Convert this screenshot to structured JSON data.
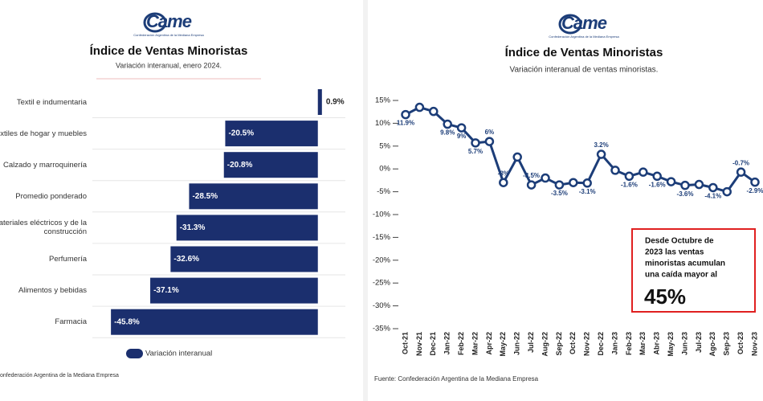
{
  "chart_data": [
    {
      "type": "bar",
      "orientation": "horizontal",
      "logo": "Came",
      "logo_caption": "Confederación Argentina de la Mediana Empresa",
      "title": "Índice de Ventas Minoristas",
      "subtitle": "Variación interanual, enero 2024.",
      "categories": [
        "Textil e indumentaria",
        "decoración, textiles de hogar y muebles",
        "Calzado y marroquinería",
        "Promedio ponderado",
        "e, materiales eléctricos y de la construcción",
        "Perfumería",
        "Alimentos y bebidas",
        "Farmacia"
      ],
      "series": [
        {
          "name": "Variación interanual",
          "color": "#1b2f6e",
          "values": [
            0.9,
            -20.5,
            -20.8,
            -28.5,
            -31.3,
            -32.6,
            -37.1,
            -45.8
          ],
          "value_labels": [
            "0.9%",
            "-20.5%",
            "-20.8%",
            "-28.5%",
            "-31.3%",
            "-32.6%",
            "-37.1%",
            "-45.8%"
          ]
        }
      ],
      "xlim": [
        -46,
        2
      ],
      "source": "onfederación Argentina de la Mediana Empresa"
    },
    {
      "type": "line",
      "logo": "Came",
      "logo_caption": "Confederación Argentina de la Mediana Empresa",
      "title": "Índice de Ventas Minoristas",
      "subtitle": "Variación interanual de ventas minoristas.",
      "categories": [
        "Oct-21",
        "Nov-21",
        "Dec-21",
        "Jan-22",
        "Feb-22",
        "Mar-22",
        "Apr-22",
        "May-22",
        "Jun-22",
        "Jul-22",
        "Aug-22",
        "Sep-22",
        "Oct-22",
        "Nov-22",
        "Dec-22",
        "Jan-23",
        "Feb-23",
        "Mar-23",
        "Abr-23",
        "May-23",
        "Jun-23",
        "Jul-23",
        "Ago-23",
        "Sep-23",
        "Oct-23",
        "Nov-23"
      ],
      "values": [
        11.9,
        13.5,
        12.6,
        9.8,
        9,
        5.7,
        6,
        -3,
        2.6,
        -3.5,
        -2,
        -3.5,
        -3,
        -3.1,
        3.2,
        -0.3,
        -1.6,
        -0.7,
        -1.6,
        -2.8,
        -3.6,
        -3.4,
        -4.1,
        -5,
        -0.7,
        -2.9
      ],
      "value_labels": [
        "11.9%",
        null,
        null,
        "9.8%",
        "9%",
        "5.7%",
        "6%",
        "-3%",
        null,
        "-3.5%",
        null,
        "-3.5%",
        null,
        "-3.1%",
        "3.2%",
        null,
        "-1.6%",
        null,
        "-1.6%",
        null,
        "-3.6%",
        null,
        "-4.1%",
        null,
        "-0.7%",
        "-2.9%"
      ],
      "color": "#1c3d78",
      "ylim": [
        -35,
        15
      ],
      "yticks": [
        {
          "value": 15,
          "label": "15%"
        },
        {
          "value": 10,
          "label": "10%"
        },
        {
          "value": 5,
          "label": "5%"
        },
        {
          "value": 0,
          "label": "0%"
        },
        {
          "value": -5,
          "label": "-5%"
        },
        {
          "value": -10,
          "label": "-10%"
        },
        {
          "value": -15,
          "label": "-15%"
        },
        {
          "value": -20,
          "label": "-20%"
        },
        {
          "value": -25,
          "label": "-25%"
        },
        {
          "value": -30,
          "label": "-30%"
        },
        {
          "value": -35,
          "label": "-35%"
        }
      ],
      "annotation": {
        "lines": [
          "Desde Octubre de",
          "2023 las ventas",
          "minoristas acumulan",
          "una caída mayor al"
        ],
        "highlight": "45%",
        "border_color": "#e02020"
      },
      "source": "Fuente: Confederación Argentina de la Mediana Empresa"
    }
  ]
}
